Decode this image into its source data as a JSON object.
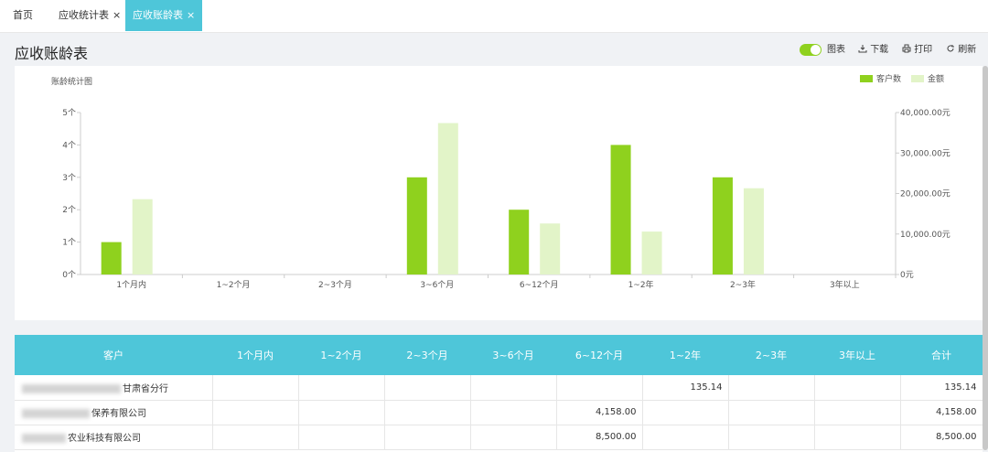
{
  "tabs": [
    {
      "label": "首页",
      "closable": false,
      "active": false
    },
    {
      "label": "应收统计表",
      "closable": true,
      "active": false
    },
    {
      "label": "应收账龄表",
      "closable": true,
      "active": true
    }
  ],
  "close_glyph": "×",
  "header": {
    "title": "应收账龄表",
    "chart_toggle_label": "图表",
    "download_label": "下载",
    "print_label": "打印",
    "refresh_label": "刷新"
  },
  "chart_data": {
    "type": "bar",
    "title": "账龄统计图",
    "categories": [
      "1个月内",
      "1~2个月",
      "2~3个月",
      "3~6个月",
      "6~12个月",
      "1~2年",
      "2~3年",
      "3年以上"
    ],
    "series": [
      {
        "name": "客户数",
        "axis": "left",
        "color": "#8fd11e",
        "values": [
          1,
          0,
          0,
          3,
          2,
          4,
          3,
          0
        ]
      },
      {
        "name": "金额",
        "axis": "right",
        "color": "#e2f4c8",
        "values": [
          18600,
          0,
          0,
          37400,
          12600,
          10600,
          21300,
          0
        ]
      }
    ],
    "y_left": {
      "ticks": [
        "0个",
        "1个",
        "2个",
        "3个",
        "4个",
        "5个"
      ],
      "min": 0,
      "max": 5
    },
    "y_right": {
      "ticks": [
        "0元",
        "10,000.00元",
        "20,000.00元",
        "30,000.00元",
        "40,000.00元"
      ],
      "min": 0,
      "max": 40000
    }
  },
  "table": {
    "columns": [
      "客户",
      "1个月内",
      "1~2个月",
      "2~3个月",
      "3~6个月",
      "6~12个月",
      "1~2年",
      "2~3年",
      "3年以上",
      "合计"
    ],
    "rows": [
      {
        "customer": "甘肃省分行",
        "cells": [
          "",
          "",
          "",
          "",
          "",
          "135.14",
          "",
          "",
          "135.14"
        ]
      },
      {
        "customer": "保养有限公司",
        "cells": [
          "",
          "",
          "",
          "",
          "4,158.00",
          "",
          "",
          "",
          "4,158.00"
        ]
      },
      {
        "customer": "农业科技有限公司",
        "cells": [
          "",
          "",
          "",
          "",
          "8,500.00",
          "",
          "",
          "",
          "8,500.00"
        ]
      }
    ]
  }
}
